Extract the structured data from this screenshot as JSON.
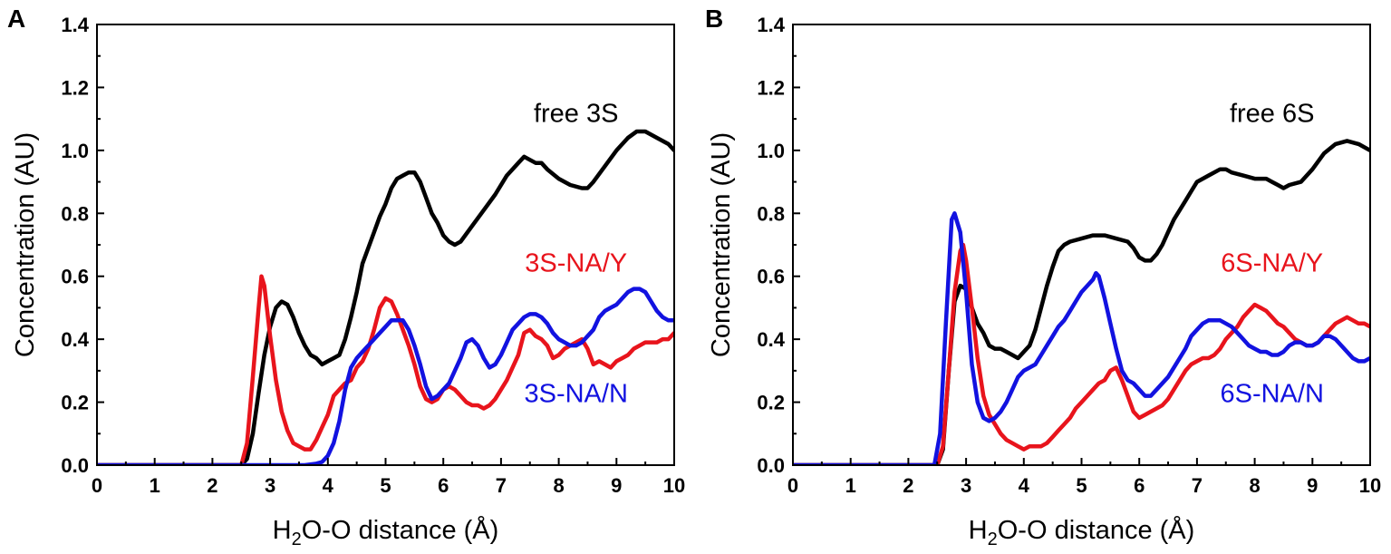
{
  "chart_data": [
    {
      "type": "line",
      "panel": "A",
      "xlabel_parts": [
        "H",
        "2",
        "O-O distance (Å)"
      ],
      "ylabel": "Concentration (AU)",
      "xlim": [
        0,
        10
      ],
      "ylim": [
        0,
        1.4
      ],
      "xticks": [
        "0",
        "1",
        "2",
        "3",
        "4",
        "5",
        "6",
        "7",
        "8",
        "9",
        "10"
      ],
      "yticks": [
        "0.0",
        "0.2",
        "0.4",
        "0.6",
        "0.8",
        "1.0",
        "1.2",
        "1.4"
      ],
      "series": [
        {
          "name": "free 3S",
          "label": "free 3S",
          "color": "#000000",
          "x": [
            0,
            2.5,
            2.6,
            2.7,
            2.8,
            2.9,
            3.0,
            3.1,
            3.2,
            3.3,
            3.4,
            3.5,
            3.6,
            3.7,
            3.8,
            3.9,
            4.0,
            4.1,
            4.2,
            4.3,
            4.4,
            4.5,
            4.6,
            4.7,
            4.8,
            4.9,
            5.0,
            5.1,
            5.2,
            5.3,
            5.4,
            5.5,
            5.6,
            5.7,
            5.8,
            5.9,
            6.0,
            6.1,
            6.2,
            6.3,
            6.5,
            6.7,
            6.9,
            7.1,
            7.3,
            7.4,
            7.5,
            7.6,
            7.7,
            7.8,
            8.0,
            8.2,
            8.4,
            8.5,
            8.6,
            8.8,
            9.0,
            9.2,
            9.35,
            9.5,
            9.7,
            9.9,
            10.0
          ],
          "y": [
            0.0,
            0.0,
            0.02,
            0.1,
            0.23,
            0.35,
            0.44,
            0.5,
            0.52,
            0.51,
            0.47,
            0.42,
            0.38,
            0.35,
            0.34,
            0.32,
            0.33,
            0.34,
            0.35,
            0.4,
            0.47,
            0.55,
            0.64,
            0.69,
            0.74,
            0.79,
            0.83,
            0.88,
            0.91,
            0.92,
            0.93,
            0.93,
            0.9,
            0.85,
            0.8,
            0.77,
            0.73,
            0.71,
            0.7,
            0.71,
            0.76,
            0.81,
            0.86,
            0.92,
            0.96,
            0.98,
            0.97,
            0.96,
            0.96,
            0.94,
            0.91,
            0.89,
            0.88,
            0.88,
            0.9,
            0.95,
            1.0,
            1.04,
            1.06,
            1.06,
            1.04,
            1.02,
            1.0
          ]
        },
        {
          "name": "3S-NA/Y",
          "label": "3S-NA/Y",
          "color": "#e8141c",
          "x": [
            0,
            2.5,
            2.6,
            2.7,
            2.8,
            2.85,
            2.9,
            3.0,
            3.1,
            3.2,
            3.3,
            3.4,
            3.5,
            3.6,
            3.7,
            3.8,
            3.9,
            4.0,
            4.1,
            4.2,
            4.3,
            4.4,
            4.5,
            4.6,
            4.7,
            4.8,
            4.9,
            5.0,
            5.1,
            5.2,
            5.3,
            5.4,
            5.5,
            5.6,
            5.7,
            5.8,
            5.9,
            6.0,
            6.1,
            6.2,
            6.3,
            6.4,
            6.5,
            6.6,
            6.7,
            6.8,
            6.9,
            7.0,
            7.1,
            7.2,
            7.3,
            7.4,
            7.5,
            7.6,
            7.7,
            7.8,
            7.9,
            8.0,
            8.1,
            8.2,
            8.3,
            8.4,
            8.5,
            8.6,
            8.7,
            8.8,
            8.9,
            9.0,
            9.1,
            9.2,
            9.3,
            9.4,
            9.5,
            9.6,
            9.7,
            9.8,
            9.9,
            10.0
          ],
          "y": [
            0.0,
            0.0,
            0.07,
            0.28,
            0.5,
            0.6,
            0.57,
            0.41,
            0.27,
            0.17,
            0.11,
            0.07,
            0.06,
            0.05,
            0.05,
            0.08,
            0.12,
            0.16,
            0.22,
            0.24,
            0.26,
            0.27,
            0.31,
            0.33,
            0.37,
            0.43,
            0.5,
            0.53,
            0.52,
            0.48,
            0.43,
            0.38,
            0.32,
            0.25,
            0.21,
            0.2,
            0.21,
            0.24,
            0.25,
            0.24,
            0.22,
            0.2,
            0.19,
            0.19,
            0.18,
            0.19,
            0.21,
            0.24,
            0.27,
            0.31,
            0.35,
            0.42,
            0.43,
            0.41,
            0.4,
            0.38,
            0.34,
            0.35,
            0.37,
            0.38,
            0.39,
            0.4,
            0.37,
            0.32,
            0.33,
            0.32,
            0.31,
            0.33,
            0.34,
            0.35,
            0.37,
            0.38,
            0.39,
            0.39,
            0.39,
            0.4,
            0.4,
            0.42
          ]
        },
        {
          "name": "3S-NA/N",
          "label": "3S-NA/N",
          "color": "#1212e0",
          "x": [
            0,
            3.6,
            3.8,
            3.9,
            4.0,
            4.1,
            4.2,
            4.3,
            4.4,
            4.5,
            4.6,
            4.7,
            4.8,
            4.9,
            5.0,
            5.1,
            5.2,
            5.3,
            5.4,
            5.5,
            5.6,
            5.7,
            5.8,
            5.9,
            6.0,
            6.1,
            6.2,
            6.3,
            6.4,
            6.5,
            6.6,
            6.7,
            6.8,
            6.9,
            7.0,
            7.1,
            7.2,
            7.3,
            7.4,
            7.5,
            7.6,
            7.7,
            7.8,
            7.9,
            8.0,
            8.1,
            8.2,
            8.3,
            8.4,
            8.5,
            8.6,
            8.7,
            8.8,
            8.9,
            9.0,
            9.1,
            9.2,
            9.3,
            9.4,
            9.5,
            9.6,
            9.7,
            9.8,
            9.9,
            10.0
          ],
          "y": [
            0.0,
            0.0,
            0.005,
            0.01,
            0.03,
            0.07,
            0.14,
            0.24,
            0.31,
            0.34,
            0.36,
            0.38,
            0.4,
            0.42,
            0.44,
            0.46,
            0.46,
            0.46,
            0.43,
            0.38,
            0.32,
            0.25,
            0.21,
            0.22,
            0.24,
            0.26,
            0.3,
            0.34,
            0.39,
            0.4,
            0.38,
            0.34,
            0.31,
            0.32,
            0.35,
            0.39,
            0.43,
            0.45,
            0.47,
            0.48,
            0.48,
            0.47,
            0.45,
            0.42,
            0.4,
            0.39,
            0.38,
            0.38,
            0.39,
            0.41,
            0.43,
            0.47,
            0.49,
            0.5,
            0.51,
            0.53,
            0.55,
            0.56,
            0.56,
            0.55,
            0.52,
            0.49,
            0.47,
            0.46,
            0.46
          ]
        }
      ],
      "annotations": [
        {
          "text": "free 3S",
          "x": 8.3,
          "y": 1.09,
          "color": "#000000"
        },
        {
          "text": "3S-NA/Y",
          "x": 8.3,
          "y": 0.615,
          "color": "#e8141c"
        },
        {
          "text": "3S-NA/N",
          "x": 8.3,
          "y": 0.2,
          "color": "#1212e0"
        }
      ]
    },
    {
      "type": "line",
      "panel": "B",
      "xlabel_parts": [
        "H",
        "2",
        "O-O distance (Å)"
      ],
      "ylabel": "Concentration (AU)",
      "xlim": [
        0,
        10
      ],
      "ylim": [
        0,
        1.4
      ],
      "xticks": [
        "0",
        "1",
        "2",
        "3",
        "4",
        "5",
        "6",
        "7",
        "8",
        "9",
        "10"
      ],
      "yticks": [
        "0.0",
        "0.2",
        "0.4",
        "0.6",
        "0.8",
        "1.0",
        "1.2",
        "1.4"
      ],
      "series": [
        {
          "name": "free 6S",
          "label": "free 6S",
          "color": "#000000",
          "x": [
            0,
            2.5,
            2.6,
            2.7,
            2.8,
            2.9,
            3.0,
            3.1,
            3.2,
            3.3,
            3.4,
            3.5,
            3.6,
            3.7,
            3.8,
            3.9,
            4.0,
            4.1,
            4.2,
            4.3,
            4.4,
            4.5,
            4.6,
            4.7,
            4.8,
            5.0,
            5.2,
            5.4,
            5.6,
            5.8,
            5.9,
            6.0,
            6.1,
            6.2,
            6.3,
            6.4,
            6.5,
            6.6,
            6.7,
            6.8,
            6.9,
            7.0,
            7.2,
            7.4,
            7.5,
            7.6,
            7.8,
            8.0,
            8.2,
            8.3,
            8.4,
            8.5,
            8.6,
            8.8,
            9.0,
            9.2,
            9.4,
            9.6,
            9.8,
            10.0
          ],
          "y": [
            0.0,
            0.0,
            0.05,
            0.3,
            0.52,
            0.57,
            0.56,
            0.5,
            0.45,
            0.42,
            0.38,
            0.37,
            0.37,
            0.36,
            0.35,
            0.34,
            0.36,
            0.38,
            0.43,
            0.5,
            0.57,
            0.63,
            0.68,
            0.7,
            0.71,
            0.72,
            0.73,
            0.73,
            0.72,
            0.71,
            0.69,
            0.66,
            0.65,
            0.65,
            0.67,
            0.7,
            0.74,
            0.78,
            0.81,
            0.84,
            0.87,
            0.9,
            0.92,
            0.94,
            0.94,
            0.93,
            0.92,
            0.91,
            0.91,
            0.9,
            0.89,
            0.88,
            0.89,
            0.9,
            0.94,
            0.99,
            1.02,
            1.03,
            1.02,
            1.0
          ]
        },
        {
          "name": "6S-NA/Y",
          "label": "6S-NA/Y",
          "color": "#e8141c",
          "x": [
            0,
            2.5,
            2.6,
            2.7,
            2.8,
            2.9,
            2.95,
            3.0,
            3.1,
            3.2,
            3.3,
            3.4,
            3.5,
            3.6,
            3.7,
            3.8,
            3.9,
            4.0,
            4.1,
            4.2,
            4.3,
            4.4,
            4.5,
            4.6,
            4.7,
            4.8,
            4.9,
            5.0,
            5.1,
            5.2,
            5.3,
            5.4,
            5.5,
            5.6,
            5.7,
            5.8,
            5.9,
            6.0,
            6.1,
            6.2,
            6.3,
            6.4,
            6.5,
            6.6,
            6.7,
            6.8,
            6.9,
            7.0,
            7.1,
            7.2,
            7.3,
            7.4,
            7.5,
            7.6,
            7.7,
            7.8,
            7.9,
            8.0,
            8.1,
            8.2,
            8.3,
            8.4,
            8.5,
            8.6,
            8.7,
            8.8,
            8.9,
            9.0,
            9.1,
            9.2,
            9.3,
            9.4,
            9.5,
            9.6,
            9.7,
            9.8,
            9.9,
            10.0
          ],
          "y": [
            0.0,
            0.0,
            0.06,
            0.3,
            0.55,
            0.68,
            0.7,
            0.65,
            0.5,
            0.34,
            0.22,
            0.16,
            0.13,
            0.1,
            0.08,
            0.07,
            0.06,
            0.05,
            0.06,
            0.06,
            0.06,
            0.07,
            0.09,
            0.11,
            0.13,
            0.15,
            0.18,
            0.2,
            0.22,
            0.24,
            0.26,
            0.27,
            0.3,
            0.31,
            0.27,
            0.22,
            0.17,
            0.15,
            0.16,
            0.17,
            0.18,
            0.19,
            0.21,
            0.24,
            0.27,
            0.3,
            0.32,
            0.33,
            0.34,
            0.34,
            0.35,
            0.37,
            0.4,
            0.42,
            0.44,
            0.47,
            0.49,
            0.51,
            0.5,
            0.49,
            0.47,
            0.45,
            0.44,
            0.42,
            0.4,
            0.39,
            0.38,
            0.38,
            0.39,
            0.41,
            0.43,
            0.45,
            0.46,
            0.47,
            0.46,
            0.45,
            0.45,
            0.44
          ]
        },
        {
          "name": "6S-NA/N",
          "label": "6S-NA/N",
          "color": "#1212e0",
          "x": [
            0,
            2.45,
            2.55,
            2.65,
            2.75,
            2.8,
            2.85,
            2.9,
            3.0,
            3.1,
            3.2,
            3.3,
            3.4,
            3.5,
            3.6,
            3.7,
            3.8,
            3.9,
            4.0,
            4.1,
            4.2,
            4.3,
            4.4,
            4.5,
            4.6,
            4.7,
            4.8,
            4.9,
            5.0,
            5.1,
            5.2,
            5.25,
            5.3,
            5.4,
            5.5,
            5.6,
            5.7,
            5.8,
            5.9,
            6.0,
            6.1,
            6.2,
            6.3,
            6.4,
            6.5,
            6.6,
            6.7,
            6.8,
            6.9,
            7.0,
            7.1,
            7.2,
            7.3,
            7.4,
            7.5,
            7.6,
            7.7,
            7.8,
            7.9,
            8.0,
            8.1,
            8.2,
            8.3,
            8.4,
            8.5,
            8.6,
            8.7,
            8.8,
            8.9,
            9.0,
            9.1,
            9.2,
            9.3,
            9.4,
            9.5,
            9.6,
            9.7,
            9.8,
            9.9,
            10.0
          ],
          "y": [
            0.0,
            0.0,
            0.1,
            0.45,
            0.78,
            0.8,
            0.77,
            0.74,
            0.55,
            0.32,
            0.2,
            0.15,
            0.14,
            0.15,
            0.17,
            0.2,
            0.24,
            0.28,
            0.3,
            0.31,
            0.32,
            0.35,
            0.38,
            0.41,
            0.44,
            0.46,
            0.49,
            0.52,
            0.55,
            0.57,
            0.59,
            0.61,
            0.6,
            0.53,
            0.45,
            0.37,
            0.3,
            0.27,
            0.26,
            0.24,
            0.22,
            0.22,
            0.24,
            0.26,
            0.28,
            0.31,
            0.34,
            0.37,
            0.41,
            0.43,
            0.45,
            0.46,
            0.46,
            0.46,
            0.45,
            0.44,
            0.42,
            0.4,
            0.38,
            0.37,
            0.36,
            0.36,
            0.35,
            0.35,
            0.36,
            0.38,
            0.39,
            0.39,
            0.38,
            0.38,
            0.39,
            0.41,
            0.41,
            0.4,
            0.38,
            0.36,
            0.34,
            0.33,
            0.33,
            0.34
          ]
        }
      ],
      "annotations": [
        {
          "text": "free 6S",
          "x": 8.3,
          "y": 1.09,
          "color": "#000000"
        },
        {
          "text": "6S-NA/Y",
          "x": 8.3,
          "y": 0.615,
          "color": "#e8141c"
        },
        {
          "text": "6S-NA/N",
          "x": 8.3,
          "y": 0.2,
          "color": "#1212e0"
        }
      ]
    }
  ]
}
